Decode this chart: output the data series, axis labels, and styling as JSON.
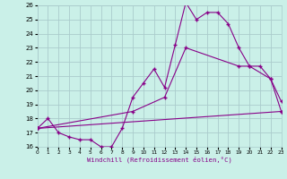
{
  "xlabel": "Windchill (Refroidissement éolien,°C)",
  "bg_color": "#caf0e8",
  "line_color": "#880088",
  "grid_color": "#aacccc",
  "xmin": 0,
  "xmax": 23,
  "ymin": 16,
  "ymax": 26,
  "line1_x": [
    0,
    1,
    2,
    3,
    4,
    5,
    6,
    7,
    8,
    9,
    10,
    11,
    12,
    13,
    14,
    15,
    16,
    17,
    18,
    19,
    20,
    21,
    22,
    23
  ],
  "line1_y": [
    17.3,
    18.0,
    17.0,
    16.7,
    16.5,
    16.5,
    16.0,
    16.0,
    17.3,
    19.5,
    20.5,
    21.5,
    20.2,
    23.2,
    26.2,
    25.0,
    25.5,
    25.5,
    24.7,
    23.0,
    21.7,
    21.7,
    20.8,
    19.2
  ],
  "line2_x": [
    0,
    9,
    12,
    14,
    19,
    20,
    22,
    23
  ],
  "line2_y": [
    17.3,
    18.5,
    19.5,
    23.0,
    21.7,
    21.7,
    20.8,
    18.5
  ],
  "line3_x": [
    0,
    23
  ],
  "line3_y": [
    17.3,
    18.5
  ]
}
